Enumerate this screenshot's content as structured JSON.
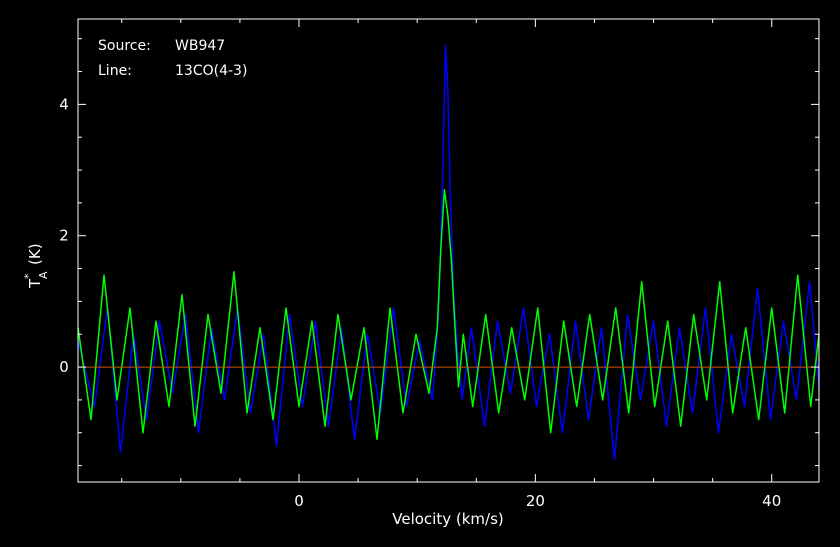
{
  "chart_data": {
    "type": "line",
    "source_label": "Source:",
    "source_value": "WB947",
    "line_label": "Line:",
    "line_value": "13CO(4-3)",
    "xlabel": "Velocity (km/s)",
    "ylabel": "T*A (K)",
    "ylabel_main": "T",
    "ylabel_sub": "A",
    "ylabel_sup": "*",
    "ylabel_unit": "(K)",
    "xlim": [
      -18.7,
      44.0
    ],
    "ylim": [
      -1.75,
      5.3
    ],
    "x_ticks": [
      {
        "value": 0,
        "label": "0"
      },
      {
        "value": 20,
        "label": "20"
      },
      {
        "value": 40,
        "label": "40"
      }
    ],
    "y_ticks": [
      {
        "value": 0,
        "label": "0"
      },
      {
        "value": 2,
        "label": "2"
      },
      {
        "value": 4,
        "label": "4"
      }
    ],
    "baseline": {
      "value": 0,
      "x_range": [
        -18.7,
        44.0
      ],
      "color": "#cc5500"
    },
    "grid": false,
    "legend": "none",
    "series": [
      {
        "color": "#0000ff",
        "x": [
          -18.7,
          -17.3,
          -16.2,
          -15.1,
          -14.0,
          -12.9,
          -11.8,
          -10.7,
          -9.6,
          -8.5,
          -7.4,
          -6.3,
          -5.2,
          -4.1,
          -3.0,
          -1.9,
          -0.8,
          0.3,
          1.4,
          2.5,
          3.6,
          4.7,
          5.8,
          6.9,
          8.0,
          9.1,
          10.2,
          11.3,
          11.8,
          12.1,
          12.4,
          12.6,
          12.8,
          13.1,
          13.4,
          13.8,
          14.6,
          15.7,
          16.8,
          17.9,
          19.0,
          20.1,
          21.2,
          22.3,
          23.4,
          24.5,
          25.6,
          26.7,
          27.8,
          28.9,
          30.0,
          31.1,
          32.2,
          33.3,
          34.4,
          35.5,
          36.6,
          37.7,
          38.8,
          39.9,
          41.0,
          42.1,
          43.2,
          44.0
        ],
        "y": [
          0.4,
          -0.6,
          0.9,
          -1.3,
          0.5,
          -0.8,
          0.7,
          -0.4,
          0.8,
          -1.0,
          0.6,
          -0.5,
          0.9,
          -0.7,
          0.5,
          -1.2,
          0.8,
          -0.6,
          0.7,
          -0.9,
          0.6,
          -1.1,
          0.5,
          -0.7,
          0.9,
          -0.6,
          0.4,
          -0.5,
          0.8,
          2.5,
          4.9,
          4.2,
          2.6,
          1.1,
          0.3,
          -0.5,
          0.6,
          -0.9,
          0.7,
          -0.4,
          0.9,
          -0.6,
          0.5,
          -1.0,
          0.7,
          -0.8,
          0.6,
          -1.4,
          0.8,
          -0.5,
          0.7,
          -0.9,
          0.6,
          -0.7,
          0.9,
          -1.0,
          0.5,
          -0.6,
          1.2,
          -0.8,
          0.7,
          -0.5,
          1.3,
          -0.3
        ]
      },
      {
        "color": "#00ff00",
        "x": [
          -18.7,
          -17.6,
          -16.5,
          -15.4,
          -14.3,
          -13.2,
          -12.1,
          -11.0,
          -9.9,
          -8.8,
          -7.7,
          -6.6,
          -5.5,
          -4.4,
          -3.3,
          -2.2,
          -1.1,
          0.0,
          1.1,
          2.2,
          3.3,
          4.4,
          5.5,
          6.6,
          7.7,
          8.8,
          9.9,
          11.0,
          11.7,
          12.0,
          12.3,
          12.6,
          12.9,
          13.2,
          13.5,
          13.9,
          14.7,
          15.8,
          16.9,
          18.0,
          19.1,
          20.2,
          21.3,
          22.4,
          23.5,
          24.6,
          25.7,
          26.8,
          27.9,
          29.0,
          30.1,
          31.2,
          32.3,
          33.4,
          34.5,
          35.6,
          36.7,
          37.8,
          38.9,
          40.0,
          41.1,
          42.2,
          43.3,
          44.0
        ],
        "y": [
          0.6,
          -0.8,
          1.4,
          -0.5,
          0.9,
          -1.0,
          0.7,
          -0.6,
          1.1,
          -0.9,
          0.8,
          -0.4,
          1.45,
          -0.7,
          0.6,
          -0.8,
          0.9,
          -0.6,
          0.7,
          -0.9,
          0.8,
          -0.5,
          0.6,
          -1.1,
          0.9,
          -0.7,
          0.5,
          -0.4,
          0.6,
          1.8,
          2.7,
          2.3,
          1.6,
          0.6,
          -0.3,
          0.5,
          -0.6,
          0.8,
          -0.7,
          0.6,
          -0.5,
          0.9,
          -1.0,
          0.7,
          -0.6,
          0.8,
          -0.5,
          0.9,
          -0.7,
          1.3,
          -0.6,
          0.7,
          -0.9,
          0.8,
          -0.5,
          1.3,
          -0.7,
          0.6,
          -0.8,
          0.9,
          -0.7,
          1.4,
          -0.6,
          0.5
        ]
      }
    ]
  }
}
